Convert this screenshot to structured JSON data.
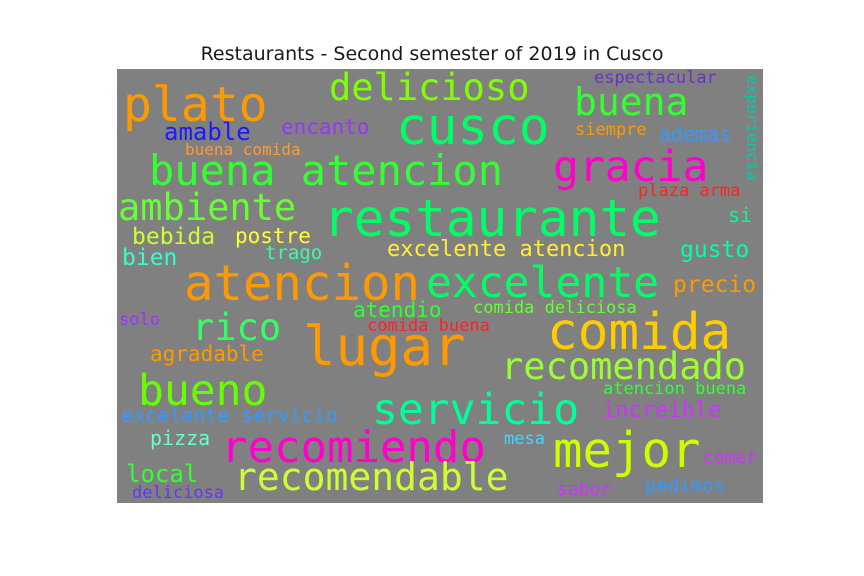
{
  "title": "Restaurants - Second semester of 2019 in Cusco",
  "words": [
    {
      "text": "plato",
      "color": "#ff9900"
    },
    {
      "text": "delicioso",
      "color": "#7fff00"
    },
    {
      "text": "cusco",
      "color": "#00ff66"
    },
    {
      "text": "buena",
      "color": "#33ff33"
    },
    {
      "text": "espectacular",
      "color": "#6633cc"
    },
    {
      "text": "experiencia",
      "color": "#00ccaa"
    },
    {
      "text": "amable",
      "color": "#1a1aff"
    },
    {
      "text": "encanto",
      "color": "#9933ff"
    },
    {
      "text": "siempre",
      "color": "#ff9900"
    },
    {
      "text": "ademas",
      "color": "#3399ff"
    },
    {
      "text": "buena comida",
      "color": "#ff9933"
    },
    {
      "text": "buena atencion",
      "color": "#33ff33"
    },
    {
      "text": "gracia",
      "color": "#ff00cc"
    },
    {
      "text": "plaza arma",
      "color": "#ff2222"
    },
    {
      "text": "ambiente",
      "color": "#66ff33"
    },
    {
      "text": "restaurante",
      "color": "#00ff66"
    },
    {
      "text": "si",
      "color": "#00ff99"
    },
    {
      "text": "bebida",
      "color": "#ccff33"
    },
    {
      "text": "postre",
      "color": "#ffff33"
    },
    {
      "text": "excelente atencion",
      "color": "#ffee33"
    },
    {
      "text": "gusto",
      "color": "#00ffaa"
    },
    {
      "text": "trago",
      "color": "#33ffaa"
    },
    {
      "text": "bien",
      "color": "#33ffcc"
    },
    {
      "text": "atencion",
      "color": "#ff9900"
    },
    {
      "text": "excelente",
      "color": "#00ff66"
    },
    {
      "text": "precio",
      "color": "#ff9900"
    },
    {
      "text": "atendio",
      "color": "#33ff33"
    },
    {
      "text": "comida deliciosa",
      "color": "#66ff33"
    },
    {
      "text": "solo",
      "color": "#9933ff"
    },
    {
      "text": "rico",
      "color": "#33ff66"
    },
    {
      "text": "comida buena",
      "color": "#ff2222"
    },
    {
      "text": "lugar",
      "color": "#ff9900"
    },
    {
      "text": "comida",
      "color": "#ffcc00"
    },
    {
      "text": "agradable",
      "color": "#ff9900"
    },
    {
      "text": "recomendado",
      "color": "#99ff33"
    },
    {
      "text": "bueno",
      "color": "#66ff00"
    },
    {
      "text": "atencion buena",
      "color": "#33ff33"
    },
    {
      "text": "servicio",
      "color": "#00ff99"
    },
    {
      "text": "increible",
      "color": "#cc33ff"
    },
    {
      "text": "excelente servicio",
      "color": "#3399ff"
    },
    {
      "text": "pizza",
      "color": "#66ffcc"
    },
    {
      "text": "recomiendo",
      "color": "#ff00cc"
    },
    {
      "text": "mesa",
      "color": "#33ddff"
    },
    {
      "text": "mejor",
      "color": "#ccff00"
    },
    {
      "text": "local",
      "color": "#33ff33"
    },
    {
      "text": "recomendable",
      "color": "#ccff33"
    },
    {
      "text": "comer",
      "color": "#cc33ff"
    },
    {
      "text": "deliciosa",
      "color": "#6633ff"
    },
    {
      "text": "sabor",
      "color": "#cc33ff"
    },
    {
      "text": "pedimos",
      "color": "#3399ff"
    }
  ]
}
